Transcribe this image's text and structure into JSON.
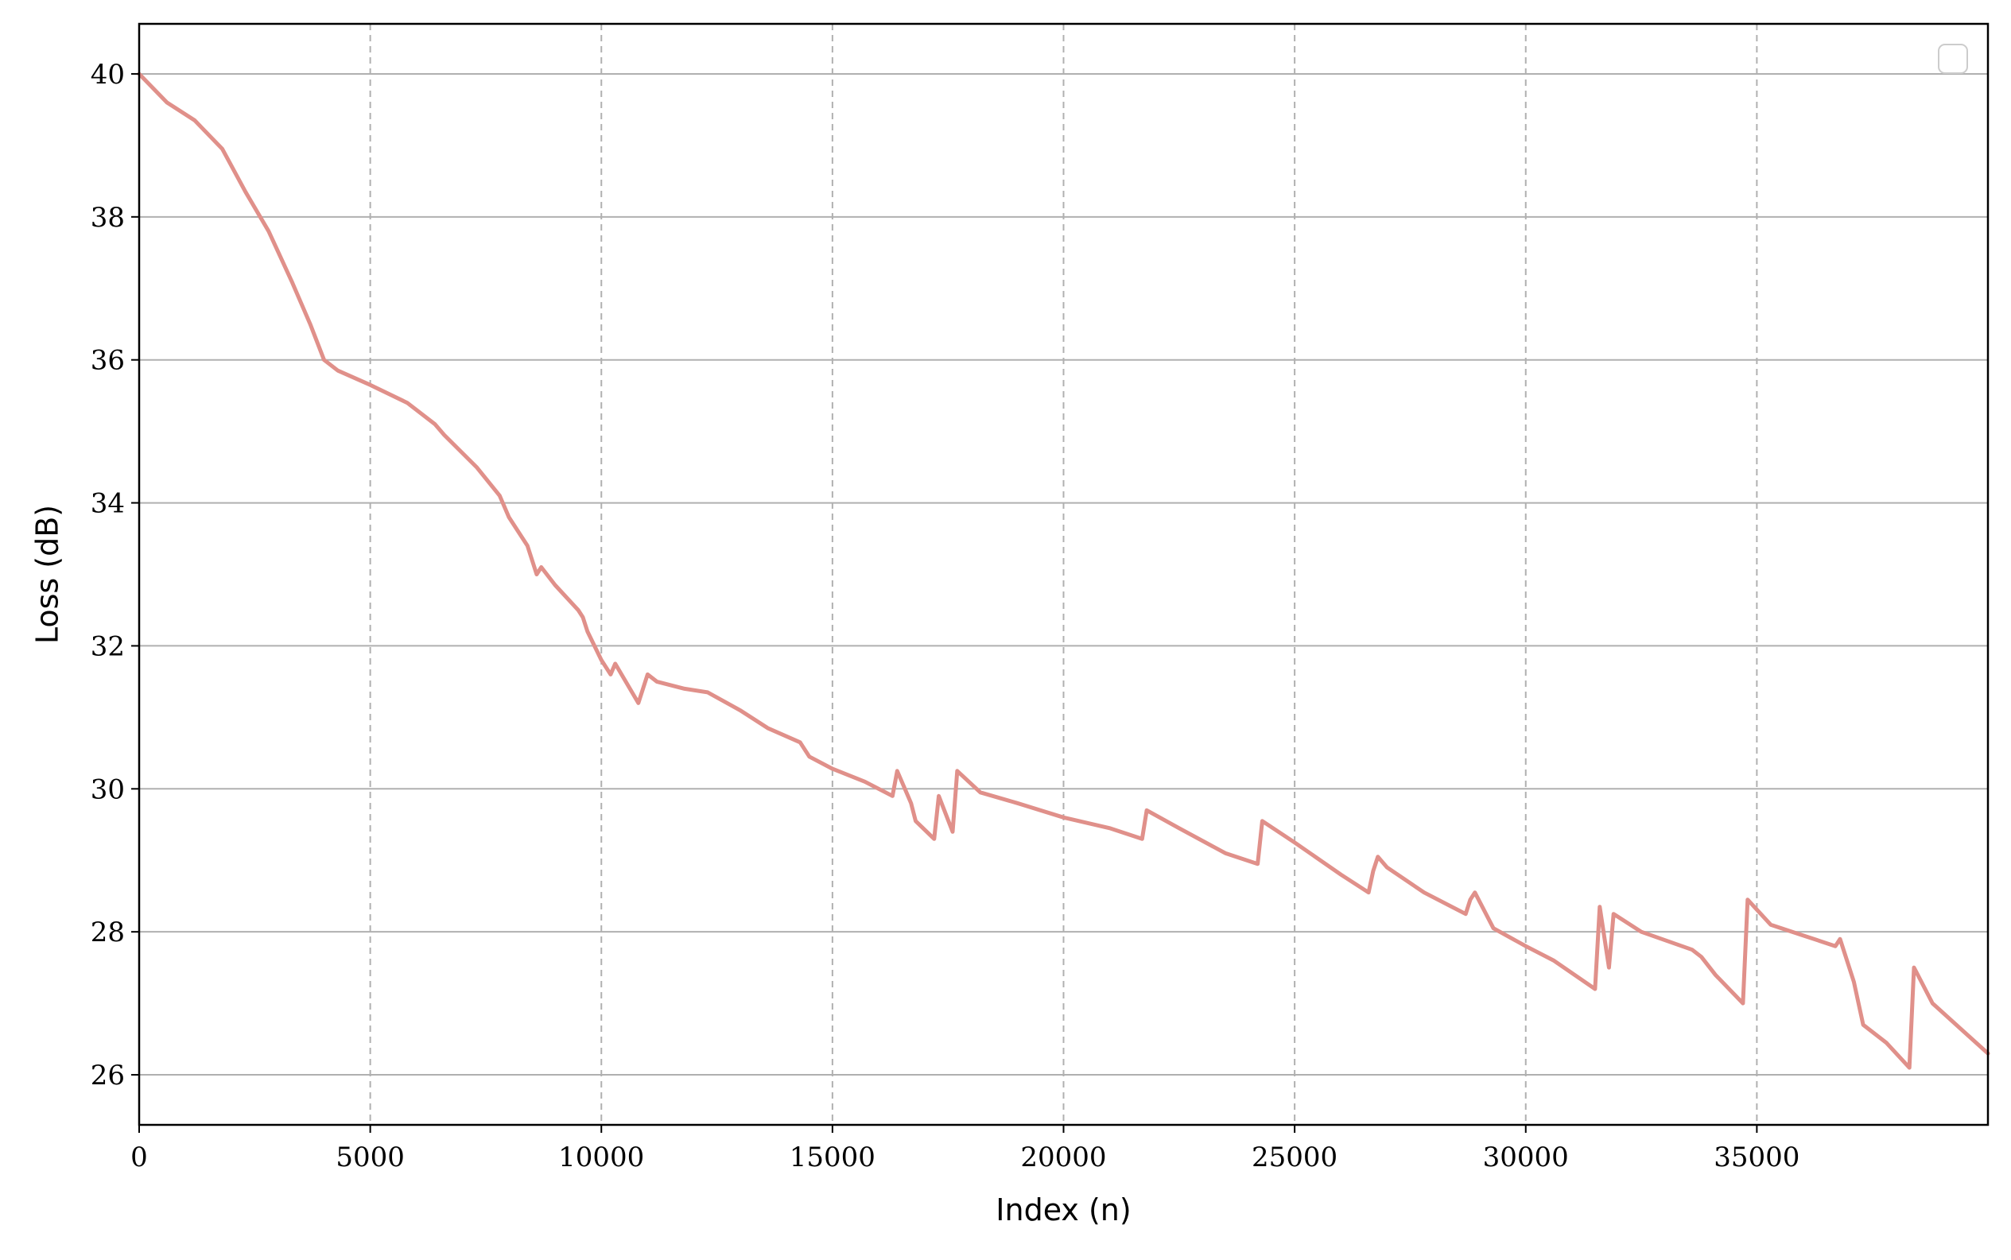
{
  "chart_data": {
    "type": "line",
    "title": "",
    "xlabel": "Index (n)",
    "ylabel": "Loss (dB)",
    "xlim": [
      0,
      40000
    ],
    "ylim": [
      25.3,
      40.7
    ],
    "xticks": [
      0,
      5000,
      10000,
      15000,
      20000,
      25000,
      30000,
      35000
    ],
    "yticks": [
      26,
      28,
      30,
      32,
      34,
      36,
      38,
      40
    ],
    "grid": {
      "x": "dashed",
      "y": "solid"
    },
    "legend": {
      "location": "upper right",
      "entries": []
    },
    "series": [
      {
        "color": "#e0908a",
        "points": [
          [
            0,
            40.0
          ],
          [
            300,
            39.8
          ],
          [
            600,
            39.6
          ],
          [
            1200,
            39.35
          ],
          [
            1800,
            38.95
          ],
          [
            2300,
            38.35
          ],
          [
            2800,
            37.8
          ],
          [
            3300,
            37.1
          ],
          [
            3700,
            36.5
          ],
          [
            4000,
            36.0
          ],
          [
            4300,
            35.85
          ],
          [
            5000,
            35.65
          ],
          [
            5800,
            35.4
          ],
          [
            6400,
            35.1
          ],
          [
            6600,
            34.95
          ],
          [
            7300,
            34.5
          ],
          [
            7800,
            34.1
          ],
          [
            8000,
            33.8
          ],
          [
            8400,
            33.4
          ],
          [
            8600,
            33.0
          ],
          [
            8700,
            33.1
          ],
          [
            9000,
            32.85
          ],
          [
            9500,
            32.5
          ],
          [
            9600,
            32.4
          ],
          [
            9700,
            32.2
          ],
          [
            10000,
            31.8
          ],
          [
            10200,
            31.6
          ],
          [
            10300,
            31.75
          ],
          [
            10800,
            31.2
          ],
          [
            10900,
            31.4
          ],
          [
            11000,
            31.6
          ],
          [
            11200,
            31.5
          ],
          [
            11800,
            31.4
          ],
          [
            12300,
            31.35
          ],
          [
            13000,
            31.1
          ],
          [
            13600,
            30.85
          ],
          [
            14300,
            30.65
          ],
          [
            14500,
            30.45
          ],
          [
            15000,
            30.28
          ],
          [
            15700,
            30.1
          ],
          [
            16300,
            29.9
          ],
          [
            16400,
            30.25
          ],
          [
            16700,
            29.8
          ],
          [
            16800,
            29.55
          ],
          [
            17200,
            29.3
          ],
          [
            17300,
            29.9
          ],
          [
            17600,
            29.4
          ],
          [
            17700,
            30.25
          ],
          [
            18200,
            29.95
          ],
          [
            19000,
            29.8
          ],
          [
            20000,
            29.6
          ],
          [
            21000,
            29.45
          ],
          [
            21700,
            29.3
          ],
          [
            21800,
            29.7
          ],
          [
            22500,
            29.45
          ],
          [
            23500,
            29.1
          ],
          [
            24200,
            28.95
          ],
          [
            24300,
            29.55
          ],
          [
            25000,
            29.25
          ],
          [
            26000,
            28.8
          ],
          [
            26600,
            28.55
          ],
          [
            26700,
            28.85
          ],
          [
            26800,
            29.05
          ],
          [
            27000,
            28.9
          ],
          [
            27800,
            28.55
          ],
          [
            28700,
            28.25
          ],
          [
            28800,
            28.45
          ],
          [
            28900,
            28.55
          ],
          [
            29300,
            28.05
          ],
          [
            30000,
            27.8
          ],
          [
            30600,
            27.6
          ],
          [
            31500,
            27.2
          ],
          [
            31600,
            28.35
          ],
          [
            31800,
            27.5
          ],
          [
            31900,
            28.25
          ],
          [
            32500,
            28.0
          ],
          [
            33600,
            27.75
          ],
          [
            33800,
            27.65
          ],
          [
            34100,
            27.4
          ],
          [
            34700,
            27.0
          ],
          [
            34800,
            28.45
          ],
          [
            35300,
            28.1
          ],
          [
            36000,
            27.95
          ],
          [
            36700,
            27.8
          ],
          [
            36800,
            27.9
          ],
          [
            37100,
            27.3
          ],
          [
            37300,
            26.7
          ],
          [
            37800,
            26.45
          ],
          [
            38300,
            26.1
          ],
          [
            38400,
            27.5
          ],
          [
            38800,
            27.0
          ],
          [
            39400,
            26.65
          ],
          [
            40000,
            26.3
          ]
        ]
      }
    ]
  }
}
